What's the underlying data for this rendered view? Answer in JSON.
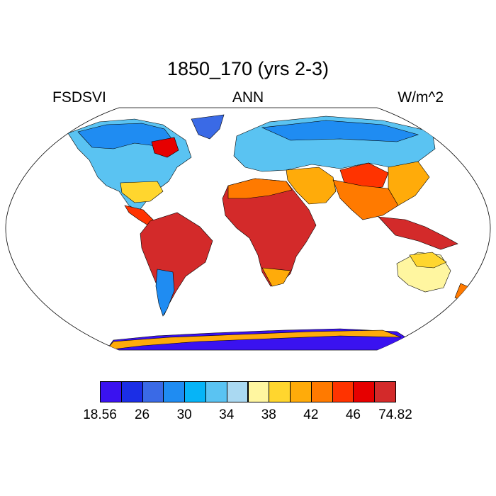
{
  "title": "1850_170 (yrs 2-3)",
  "left_label": "FSDSVI",
  "center_label": "ANN",
  "right_label": "W/m^2",
  "colorbar": {
    "colors": [
      "#3a12f0",
      "#1b2ee6",
      "#3a6ae6",
      "#1f8cf2",
      "#06b4f7",
      "#5ac3f2",
      "#aad9f2",
      "#fff6a0",
      "#ffd62e",
      "#ffab0a",
      "#ff7a00",
      "#ff3300",
      "#e60000",
      "#d32a2a"
    ],
    "labels": [
      "18.56",
      "26",
      "30",
      "34",
      "38",
      "42",
      "46",
      "74.82"
    ]
  }
}
